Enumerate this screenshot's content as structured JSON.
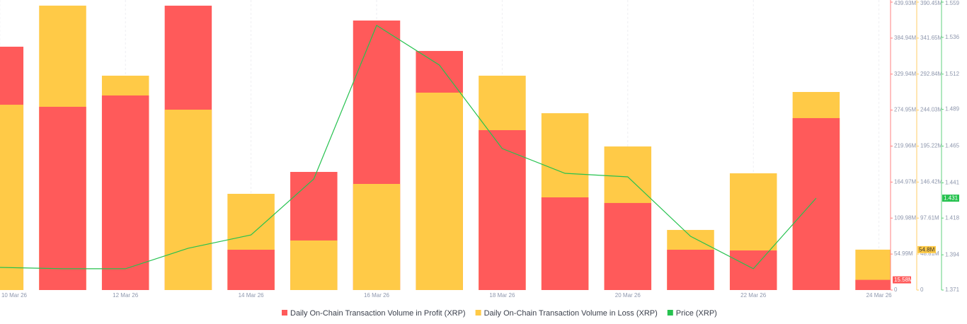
{
  "chart_data": {
    "type": "bar",
    "categories": [
      "10 Mar 26",
      null,
      "12 Mar 26",
      null,
      "14 Mar 26",
      null,
      "16 Mar 26",
      null,
      "18 Mar 26",
      null,
      "20 Mar 26",
      null,
      "22 Mar 26",
      null,
      "24 Mar 26"
    ],
    "series": [
      {
        "name": "Daily On-Chain Transaction Volume in Profit (XRP)",
        "color": "#ff5a5a",
        "axis": "y",
        "values": [
          371.8,
          280.0,
          297.3,
          434.5,
          61.6,
          180.5,
          411.8,
          365.3,
          244.3,
          141.6,
          133.0,
          61.6,
          60.5,
          262.7,
          15.58
        ],
        "value_labels": [
          null,
          null,
          null,
          null,
          null,
          null,
          null,
          null,
          null,
          null,
          null,
          null,
          null,
          null,
          "15.58M"
        ]
      },
      {
        "name": "Daily On-Chain Transaction Volume in Loss (XRP)",
        "color": "#ffca47",
        "axis": "y2",
        "values": [
          251.3,
          385.7,
          290.7,
          244.6,
          130.5,
          67.2,
          143.9,
          267.7,
          290.7,
          239.8,
          194.7,
          81.5,
          158.3,
          268.6,
          54.8
        ],
        "value_labels": [
          null,
          null,
          null,
          null,
          null,
          null,
          null,
          null,
          null,
          null,
          null,
          null,
          null,
          null,
          "54.8M"
        ]
      },
      {
        "name": "Price (XRP)",
        "color": "#26c24f",
        "axis": "y3",
        "type": "line",
        "values": [
          1.3858,
          1.3849,
          1.3849,
          1.3983,
          1.407,
          1.4435,
          1.5438,
          1.5179,
          1.4634,
          1.4472,
          1.4449,
          1.4061,
          1.3849,
          1.431,
          null
        ],
        "value_labels": [
          null,
          null,
          null,
          null,
          null,
          null,
          null,
          null,
          null,
          null,
          null,
          null,
          null,
          "1.431",
          null
        ]
      }
    ],
    "ylim": [
      0,
      439.93
    ],
    "yticks": [
      0,
      {
        "value": 54.99,
        "label": "54.99M"
      },
      {
        "value": 109.98,
        "label": "109.98M"
      },
      {
        "value": 164.97,
        "label": "164.97M"
      },
      {
        "value": 219.96,
        "label": "219.96M"
      },
      {
        "value": 274.95,
        "label": "274.95M"
      },
      {
        "value": 329.94,
        "label": "329.94M"
      },
      {
        "value": 384.94,
        "label": "384.94M"
      },
      {
        "value": 439.93,
        "label": "439.93M"
      }
    ],
    "y2lim": [
      0,
      390.45
    ],
    "y2ticks": [
      0,
      {
        "value": 48.81,
        "label": "48.81M"
      },
      {
        "value": 97.61,
        "label": "97.61M"
      },
      {
        "value": 146.42,
        "label": "146.42M"
      },
      {
        "value": 195.22,
        "label": "195.22M"
      },
      {
        "value": 244.03,
        "label": "244.03M"
      },
      {
        "value": 292.84,
        "label": "292.84M"
      },
      {
        "value": 341.65,
        "label": "341.65M"
      },
      {
        "value": 390.45,
        "label": "390.45M"
      }
    ],
    "y3lim": [
      1.371,
      1.559
    ],
    "y3ticks": [
      1.371,
      1.394,
      1.418,
      1.441,
      1.465,
      1.489,
      1.512,
      1.536,
      1.559
    ],
    "grid": true,
    "legend": "bottom"
  }
}
